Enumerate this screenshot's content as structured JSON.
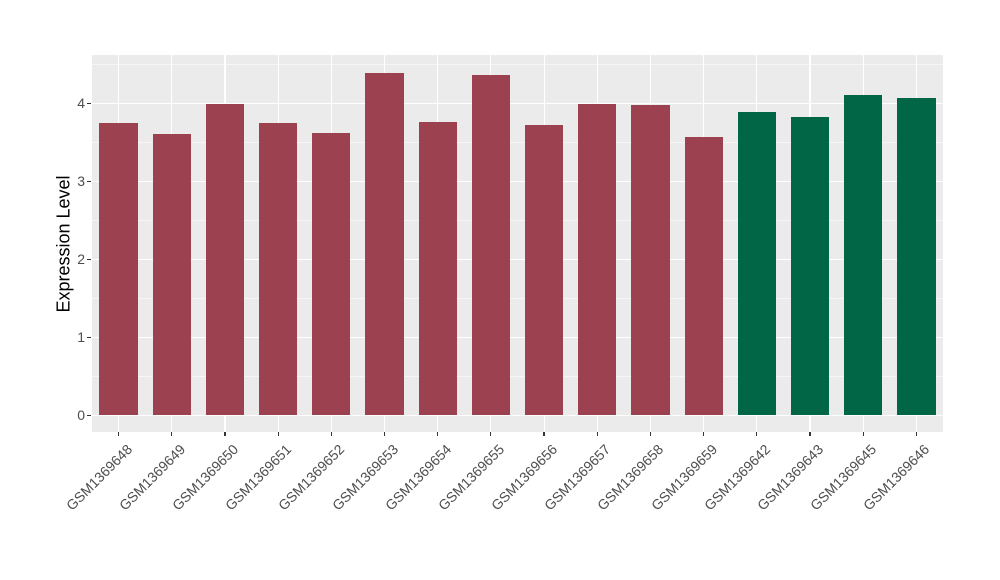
{
  "chart_data": {
    "type": "bar",
    "title": "",
    "xlabel": "",
    "ylabel": "Expression Level",
    "categories": [
      "GSM1369648",
      "GSM1369649",
      "GSM1369650",
      "GSM1369651",
      "GSM1369652",
      "GSM1369653",
      "GSM1369654",
      "GSM1369655",
      "GSM1369656",
      "GSM1369657",
      "GSM1369658",
      "GSM1369659",
      "GSM1369642",
      "GSM1369643",
      "GSM1369645",
      "GSM1369646"
    ],
    "values": [
      3.75,
      3.6,
      3.99,
      3.74,
      3.61,
      4.38,
      3.76,
      4.36,
      3.72,
      3.99,
      3.98,
      3.57,
      3.88,
      3.82,
      4.1,
      4.06
    ],
    "groups": [
      "group1",
      "group1",
      "group1",
      "group1",
      "group1",
      "group1",
      "group1",
      "group1",
      "group1",
      "group1",
      "group1",
      "group1",
      "group2",
      "group2",
      "group2",
      "group2"
    ],
    "group_colors": {
      "group1": "#9B4150",
      "group2": "#006645"
    },
    "y_ticks": [
      0,
      1,
      2,
      3,
      4
    ],
    "y_minor_ticks": [
      0.5,
      1.5,
      2.5,
      3.5,
      4.5
    ],
    "ylim": [
      -0.22,
      4.62
    ],
    "x_label_angle": -45,
    "grid": "major+minor",
    "legend": "none",
    "panel_bg": "#EBEBEB",
    "grid_color": "#FFFFFF",
    "axis_text_color": "#4D4D4D",
    "axis_title_color": "#000000",
    "tick_mark_color": "#333333"
  }
}
